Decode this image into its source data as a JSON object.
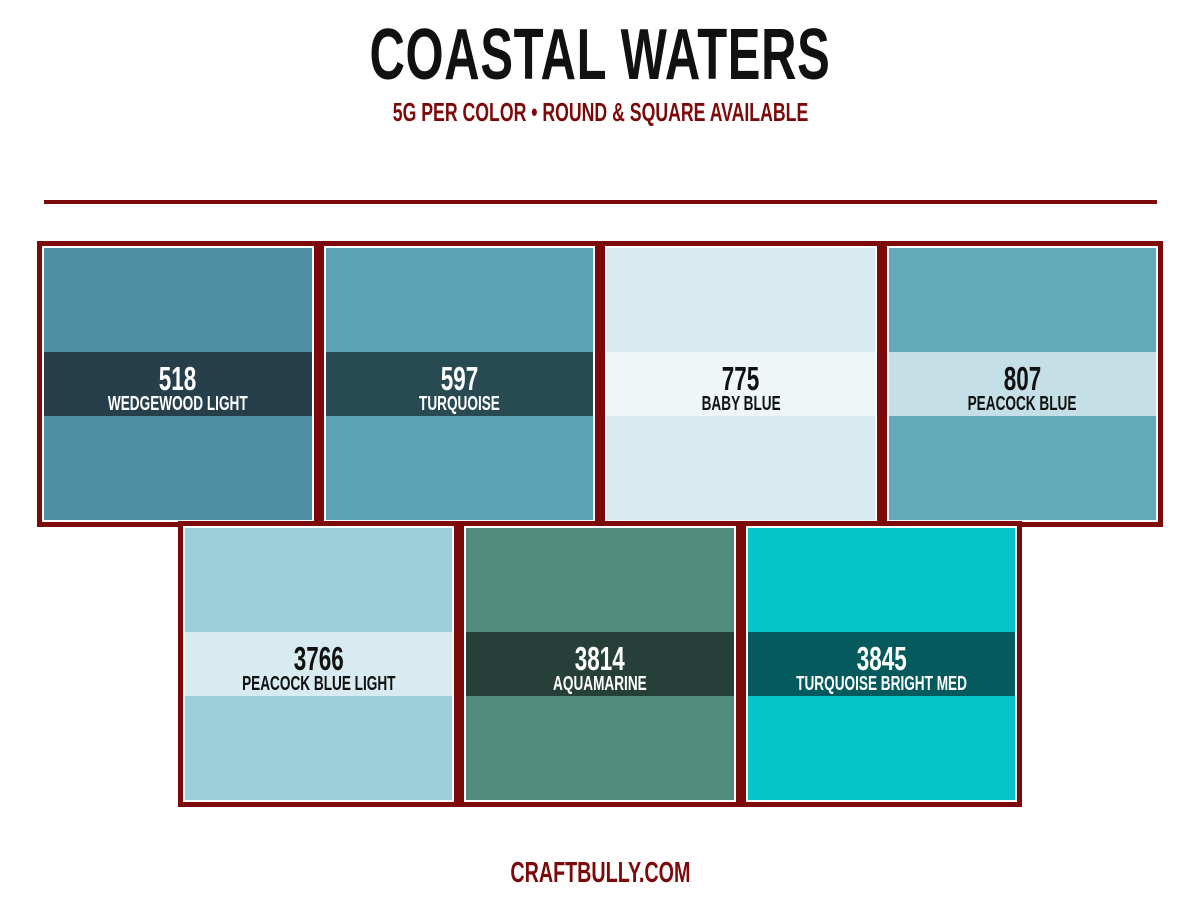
{
  "header": {
    "title": "COASTAL WATERS",
    "subtitle": "5G PER COLOR  •  ROUND & SQUARE AVAILABLE"
  },
  "swatches": [
    [
      {
        "code": "518",
        "name": "WEDGEWOOD LIGHT",
        "color": "#4e8fa3",
        "band_color": "#263f4a",
        "text_color": "#ffffff"
      },
      {
        "code": "597",
        "name": "TURQUOISE",
        "color": "#5ba3b2",
        "band_color": "#284a52",
        "text_color": "#ffffff"
      },
      {
        "code": "775",
        "name": "BABY BLUE",
        "color": "#d9e9f0",
        "band_color": "#eef6f8",
        "text_color": "#111111"
      },
      {
        "code": "807",
        "name": "PEACOCK BLUE",
        "color": "#63aab9",
        "band_color": "#c4dfe5",
        "text_color": "#111111"
      }
    ],
    [
      {
        "code": "3766",
        "name": "PEACOCK BLUE LIGHT",
        "color": "#9bcfd9",
        "band_color": "#d8ebf0",
        "text_color": "#111111"
      },
      {
        "code": "3814",
        "name": "AQUAMARINE",
        "color": "#528c7c",
        "band_color": "#263f38",
        "text_color": "#ffffff"
      },
      {
        "code": "3845",
        "name": "TURQUOISE BRIGHT MED",
        "color": "#06c4c8",
        "band_color": "#045a5c",
        "text_color": "#ffffff"
      }
    ]
  ],
  "footer": {
    "site": "CRAFTBULLY.COM"
  }
}
